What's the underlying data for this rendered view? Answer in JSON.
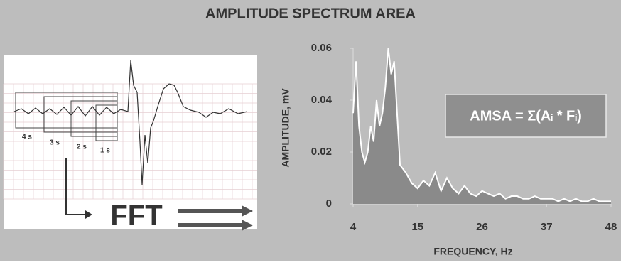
{
  "chart_data": {
    "type": "area",
    "title": "AMPLITUDE SPECTRUM AREA",
    "x_label": "FREQUENCY, Hz",
    "y_label": "AMPLITUDE, mV",
    "annotation": "AMSA = Σ(Aᵢ * Fᵢ)",
    "x": [
      4,
      4.5,
      5,
      5.5,
      6,
      6.5,
      7,
      7.5,
      8,
      8.5,
      9,
      9.5,
      10,
      10.5,
      11,
      11.5,
      12,
      13,
      14,
      15,
      16,
      17,
      18,
      19,
      20,
      21,
      22,
      23,
      24,
      25,
      26,
      27,
      28,
      29,
      30,
      31,
      32,
      33,
      34,
      35,
      36,
      37,
      38,
      39,
      40,
      41,
      42,
      43,
      44,
      45,
      46,
      47,
      48
    ],
    "values": [
      0.035,
      0.055,
      0.03,
      0.02,
      0.016,
      0.02,
      0.03,
      0.024,
      0.04,
      0.03,
      0.035,
      0.045,
      0.06,
      0.05,
      0.055,
      0.035,
      0.015,
      0.012,
      0.008,
      0.006,
      0.009,
      0.007,
      0.012,
      0.005,
      0.01,
      0.006,
      0.004,
      0.007,
      0.004,
      0.003,
      0.005,
      0.004,
      0.003,
      0.004,
      0.002,
      0.003,
      0.003,
      0.002,
      0.002,
      0.003,
      0.002,
      0.002,
      0.002,
      0.001,
      0.002,
      0.001,
      0.002,
      0.001,
      0.001,
      0.002,
      0.001,
      0.001,
      0.001
    ],
    "line_color": "#ffffff",
    "fill_color": "#8a8a8a",
    "xlim": [
      4,
      48
    ],
    "xticks": [
      4,
      15,
      26,
      37,
      48
    ],
    "ylim": [
      0,
      0.06
    ],
    "yticks": [
      0,
      0.02,
      0.04,
      0.06
    ]
  },
  "ecg_panel": {
    "windows": [
      "4 s",
      "3 s",
      "2 s",
      "1 s"
    ],
    "fft_label": "FFT"
  }
}
